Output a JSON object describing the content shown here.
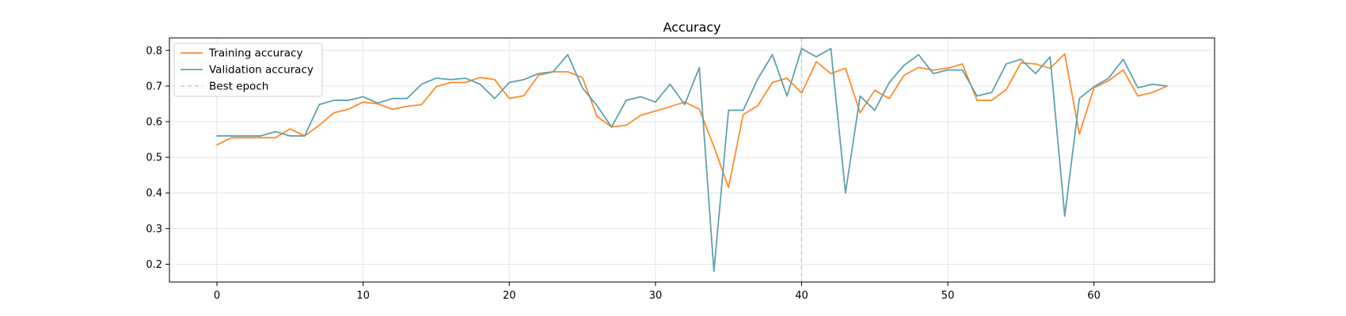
{
  "chart_data": {
    "type": "line",
    "title": "Accuracy",
    "xlabel": "",
    "ylabel": "",
    "xlim": [
      -3.25,
      68.25
    ],
    "ylim": [
      0.15,
      0.835
    ],
    "xticks": [
      0,
      10,
      20,
      30,
      40,
      50,
      60
    ],
    "yticks": [
      0.2,
      0.3,
      0.4,
      0.5,
      0.6,
      0.7,
      0.8
    ],
    "grid": true,
    "legend_position": "upper left",
    "x": [
      0,
      1,
      2,
      3,
      4,
      5,
      6,
      7,
      8,
      9,
      10,
      11,
      12,
      13,
      14,
      15,
      16,
      17,
      18,
      19,
      20,
      21,
      22,
      23,
      24,
      25,
      26,
      27,
      28,
      29,
      30,
      31,
      32,
      33,
      34,
      35,
      36,
      37,
      38,
      39,
      40,
      41,
      42,
      43,
      44,
      45,
      46,
      47,
      48,
      49,
      50,
      51,
      52,
      53,
      54,
      55,
      56,
      57,
      58,
      59,
      60,
      61,
      62,
      63,
      64,
      65
    ],
    "series": [
      {
        "name": "Training accuracy",
        "color": "#ff8c29",
        "values": [
          0.535,
          0.555,
          0.555,
          0.555,
          0.555,
          0.58,
          0.56,
          0.59,
          0.625,
          0.635,
          0.655,
          0.65,
          0.635,
          0.643,
          0.648,
          0.698,
          0.71,
          0.71,
          0.724,
          0.718,
          0.665,
          0.673,
          0.73,
          0.74,
          0.74,
          0.724,
          0.615,
          0.585,
          0.59,
          0.618,
          0.63,
          0.642,
          0.655,
          0.635,
          0.53,
          0.415,
          0.62,
          0.645,
          0.71,
          0.722,
          0.68,
          0.768,
          0.735,
          0.75,
          0.625,
          0.688,
          0.665,
          0.73,
          0.752,
          0.745,
          0.75,
          0.762,
          0.66,
          0.66,
          0.69,
          0.765,
          0.762,
          0.75,
          0.79,
          0.565,
          0.695,
          0.715,
          0.745,
          0.672,
          0.682,
          0.7
        ]
      },
      {
        "name": "Validation accuracy",
        "color": "#5fa2ad",
        "values": [
          0.56,
          0.56,
          0.56,
          0.56,
          0.572,
          0.56,
          0.56,
          0.648,
          0.66,
          0.66,
          0.67,
          0.652,
          0.665,
          0.665,
          0.705,
          0.722,
          0.718,
          0.722,
          0.705,
          0.665,
          0.71,
          0.718,
          0.735,
          0.74,
          0.788,
          0.695,
          0.645,
          0.585,
          0.66,
          0.67,
          0.655,
          0.705,
          0.648,
          0.752,
          0.18,
          0.632,
          0.632,
          0.72,
          0.788,
          0.672,
          0.805,
          0.782,
          0.805,
          0.4,
          0.672,
          0.632,
          0.71,
          0.758,
          0.788,
          0.735,
          0.745,
          0.745,
          0.672,
          0.682,
          0.762,
          0.775,
          0.735,
          0.782,
          0.335,
          0.665,
          0.698,
          0.722,
          0.775,
          0.695,
          0.705,
          0.7
        ]
      }
    ],
    "annotations": [
      {
        "type": "vline",
        "x": 40,
        "label": "Best epoch",
        "color": "#aed3dc",
        "style": "dashed"
      }
    ]
  }
}
